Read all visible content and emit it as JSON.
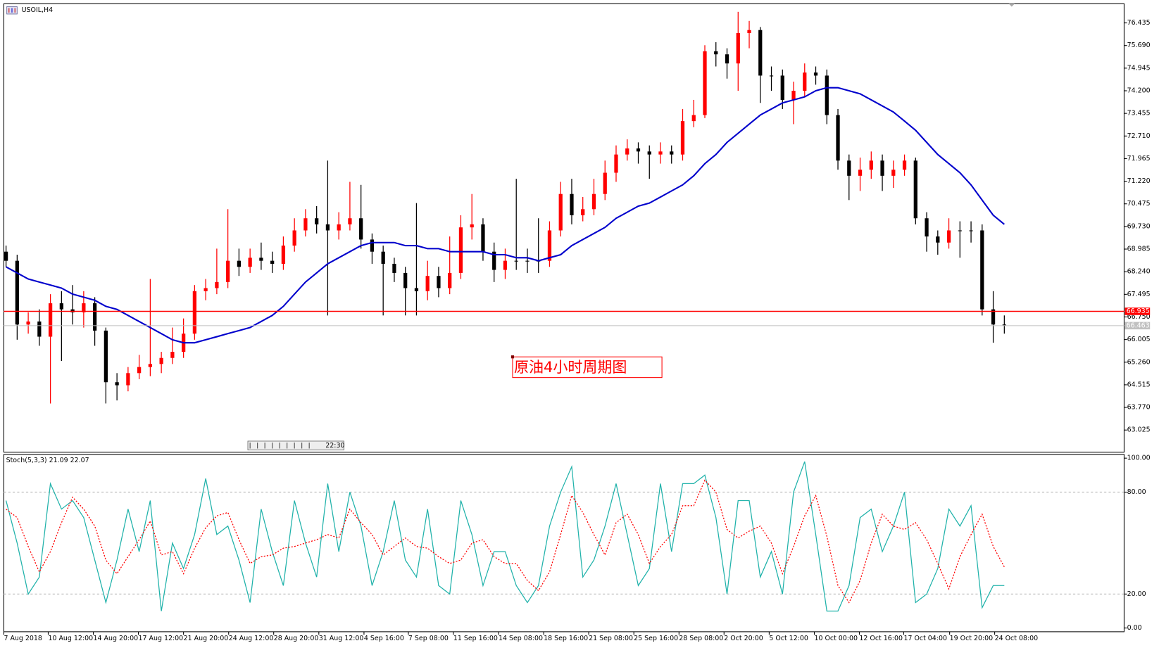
{
  "chart_data": [
    {
      "type": "candlestick",
      "title": "USOIL,H4",
      "open": [
        68.9,
        68.6,
        66.5,
        66.6,
        66.1,
        67.2,
        67.0,
        66.9,
        67.2,
        66.3,
        64.6,
        64.5,
        64.9,
        65.1,
        65.2,
        65.4,
        65.6,
        66.2,
        67.6,
        67.7,
        67.9,
        68.6,
        68.4,
        68.7,
        68.6,
        68.5,
        69.1,
        69.6,
        70.0,
        69.8,
        69.6,
        69.8,
        70.0,
        69.3,
        68.9,
        68.5,
        68.2,
        67.7,
        67.6,
        68.1,
        67.7,
        68.2,
        69.7,
        69.8,
        68.9,
        68.3,
        68.6,
        68.6,
        68.6,
        68.6,
        69.6,
        70.8,
        70.1,
        70.3,
        70.8,
        71.5,
        72.1,
        72.3,
        72.2,
        72.1,
        72.2,
        72.1,
        73.2,
        73.4,
        75.5,
        75.4,
        75.1,
        76.1,
        76.2,
        74.7,
        74.7,
        73.9,
        74.2,
        74.8,
        74.7,
        73.4,
        71.9,
        71.4,
        71.6,
        71.9,
        71.4,
        71.6,
        71.9,
        70.0,
        69.4,
        69.2,
        69.6,
        69.6,
        69.6,
        67.0,
        66.5
      ],
      "high": [
        69.1,
        68.8,
        66.9,
        67.0,
        67.5,
        67.6,
        67.8,
        67.6,
        67.4,
        66.4,
        64.9,
        65.1,
        65.5,
        68.0,
        65.6,
        66.4,
        66.7,
        67.8,
        68.0,
        69.0,
        70.3,
        69.0,
        69.0,
        69.2,
        68.9,
        69.4,
        70.0,
        70.3,
        70.4,
        71.9,
        70.2,
        71.2,
        71.1,
        69.5,
        69.1,
        68.7,
        68.4,
        70.5,
        68.6,
        68.4,
        69.4,
        70.1,
        70.8,
        70.0,
        69.2,
        69.0,
        71.3,
        69.0,
        70.0,
        69.9,
        71.2,
        71.3,
        70.7,
        71.3,
        71.9,
        72.4,
        72.6,
        72.5,
        72.4,
        72.5,
        72.4,
        73.6,
        73.9,
        75.7,
        75.8,
        75.6,
        76.8,
        76.5,
        76.3,
        75.0,
        74.9,
        74.5,
        75.1,
        75.0,
        74.9,
        73.6,
        72.1,
        72.0,
        72.2,
        72.1,
        71.9,
        72.1,
        72.0,
        70.2,
        69.6,
        70.0,
        69.9,
        69.9,
        69.8,
        67.6,
        66.8
      ],
      "low": [
        68.4,
        66.0,
        66.2,
        65.8,
        63.9,
        65.3,
        66.5,
        66.4,
        65.8,
        63.9,
        64.0,
        64.3,
        64.7,
        64.8,
        64.9,
        65.2,
        65.4,
        66.0,
        67.3,
        67.5,
        67.7,
        68.1,
        68.2,
        68.3,
        68.2,
        68.3,
        68.9,
        69.4,
        69.5,
        66.8,
        69.3,
        69.6,
        69.0,
        68.5,
        66.8,
        67.9,
        66.8,
        66.8,
        67.3,
        67.4,
        67.5,
        68.0,
        69.3,
        68.6,
        67.9,
        68.0,
        68.3,
        68.2,
        68.2,
        68.4,
        69.4,
        69.8,
        69.9,
        70.1,
        70.6,
        71.2,
        71.9,
        71.8,
        71.3,
        71.8,
        71.8,
        71.9,
        73.0,
        73.3,
        75.0,
        74.6,
        74.2,
        75.6,
        73.8,
        74.2,
        73.6,
        73.1,
        74.0,
        74.4,
        73.1,
        71.6,
        70.6,
        70.9,
        71.3,
        70.9,
        71.0,
        71.4,
        69.8,
        68.9,
        68.8,
        69.0,
        68.7,
        69.2,
        66.8,
        65.9,
        66.2
      ],
      "close": [
        68.6,
        66.5,
        66.6,
        66.1,
        67.2,
        67.0,
        66.9,
        67.2,
        66.3,
        64.6,
        64.5,
        64.9,
        65.1,
        65.2,
        65.4,
        65.6,
        66.2,
        67.6,
        67.7,
        67.9,
        68.6,
        68.4,
        68.7,
        68.6,
        68.5,
        69.1,
        69.6,
        70.0,
        69.8,
        69.6,
        69.8,
        70.0,
        69.3,
        68.9,
        68.5,
        68.2,
        67.7,
        67.6,
        68.1,
        67.7,
        68.2,
        69.7,
        69.8,
        68.9,
        68.3,
        68.6,
        68.6,
        68.6,
        68.6,
        69.6,
        70.8,
        70.1,
        70.3,
        70.8,
        71.5,
        72.1,
        72.3,
        72.2,
        72.1,
        72.2,
        72.1,
        73.2,
        73.4,
        75.5,
        75.4,
        75.1,
        76.1,
        76.2,
        74.7,
        74.7,
        73.9,
        74.2,
        74.8,
        74.7,
        73.4,
        71.9,
        71.4,
        71.6,
        71.9,
        71.4,
        71.6,
        71.9,
        70.0,
        69.4,
        69.2,
        69.6,
        69.6,
        69.6,
        67.0,
        66.5,
        66.5
      ],
      "up_color": "#ff0000",
      "down_color": "#000000",
      "ma": {
        "color": "#0000cc",
        "values": [
          68.4,
          68.2,
          68.0,
          67.9,
          67.8,
          67.7,
          67.5,
          67.4,
          67.3,
          67.1,
          67.0,
          66.8,
          66.6,
          66.4,
          66.2,
          66.0,
          65.9,
          65.9,
          66.0,
          66.1,
          66.2,
          66.3,
          66.4,
          66.6,
          66.8,
          67.1,
          67.5,
          67.9,
          68.2,
          68.5,
          68.7,
          68.9,
          69.1,
          69.2,
          69.2,
          69.2,
          69.1,
          69.1,
          69.0,
          69.0,
          68.9,
          68.9,
          68.9,
          68.9,
          68.8,
          68.8,
          68.7,
          68.7,
          68.6,
          68.7,
          68.8,
          69.1,
          69.3,
          69.5,
          69.7,
          70.0,
          70.2,
          70.4,
          70.5,
          70.7,
          70.9,
          71.1,
          71.4,
          71.8,
          72.1,
          72.5,
          72.8,
          73.1,
          73.4,
          73.6,
          73.8,
          73.9,
          74.0,
          74.2,
          74.3,
          74.3,
          74.2,
          74.1,
          73.9,
          73.7,
          73.5,
          73.2,
          72.9,
          72.5,
          72.1,
          71.8,
          71.5,
          71.1,
          70.6,
          70.1,
          69.8
        ]
      },
      "price_lines": [
        {
          "value": 66.935,
          "label": "66.935",
          "color": "#ff0000"
        },
        {
          "value": 66.463,
          "label": "66.463",
          "color": "#c0c0c0"
        }
      ],
      "annotation": "原油4小时周期图",
      "scroll_label": "22:30",
      "xlim": [
        -0.2,
        100.8
      ],
      "ylim": [
        62.295,
        77.068
      ],
      "yticks": [
        76.435,
        {
          "value": 75.69,
          "label": "75.690"
        },
        74.945,
        {
          "value": 74.2,
          "label": "74.200"
        },
        73.455,
        {
          "value": 72.71,
          "label": "72.710"
        },
        71.965,
        {
          "value": 71.22,
          "label": "71.220"
        },
        70.475,
        {
          "value": 69.73,
          "label": "69.730"
        },
        68.985,
        {
          "value": 68.24,
          "label": "68.240"
        },
        67.495,
        {
          "value": 66.75,
          "label": "66.750"
        },
        66.005,
        {
          "value": 65.26,
          "label": "65.260"
        },
        64.515,
        {
          "value": 63.77,
          "label": "63.770"
        },
        63.025
      ]
    },
    {
      "type": "line",
      "title": "Stoch(5,3,3) 21.09 22.07",
      "series": [
        {
          "color": "#20b2aa",
          "dash": false,
          "values": [
            75,
            50,
            20,
            30,
            85,
            70,
            75,
            65,
            40,
            15,
            40,
            70,
            45,
            75,
            10,
            50,
            35,
            55,
            88,
            55,
            60,
            40,
            15,
            70,
            45,
            25,
            75,
            50,
            30,
            85,
            45,
            80,
            60,
            25,
            45,
            75,
            40,
            30,
            70,
            25,
            20,
            75,
            55,
            25,
            45,
            45,
            25,
            15,
            25,
            60,
            80,
            95,
            30,
            40,
            60,
            85,
            55,
            25,
            35,
            85,
            45,
            85,
            85,
            90,
            65,
            20,
            75,
            75,
            30,
            45,
            20,
            80,
            98,
            55,
            10,
            10,
            25,
            65,
            70,
            45,
            60,
            80,
            15,
            20,
            35,
            70,
            60,
            72,
            12,
            25,
            25
          ]
        },
        {
          "color": "#ff0000",
          "dash": true,
          "values": [
            70,
            65,
            48,
            33,
            45,
            62,
            77,
            70,
            60,
            40,
            32,
            42,
            52,
            63,
            43,
            45,
            32,
            47,
            59,
            66,
            68,
            52,
            38,
            42,
            43,
            47,
            48,
            50,
            52,
            55,
            53,
            70,
            62,
            55,
            43,
            48,
            53,
            48,
            47,
            42,
            38,
            40,
            50,
            52,
            42,
            38,
            38,
            28,
            22,
            33,
            55,
            78,
            68,
            55,
            43,
            62,
            67,
            55,
            38,
            48,
            55,
            72,
            72,
            87,
            80,
            58,
            53,
            57,
            60,
            50,
            32,
            48,
            66,
            78,
            54,
            25,
            15,
            28,
            50,
            67,
            60,
            58,
            62,
            52,
            38,
            23,
            42,
            55,
            67,
            48,
            36
          ]
        }
      ],
      "levels": [
        80,
        20
      ],
      "xlim": [
        -0.2,
        100.8
      ],
      "xticks": [
        {
          "value": -0.2,
          "label": "7 Aug 2018"
        },
        {
          "value": 3.8,
          "label": "10 Aug 12:00"
        },
        {
          "value": 7.87,
          "label": "14 Aug 20:00"
        },
        {
          "value": 11.93,
          "label": "17 Aug 12:00"
        },
        {
          "value": 16,
          "label": "21 Aug 20:00"
        },
        {
          "value": 20.07,
          "label": "24 Aug 12:00"
        },
        {
          "value": 24.13,
          "label": "28 Aug 20:00"
        },
        {
          "value": 28.2,
          "label": "31 Aug 12:00"
        },
        {
          "value": 32.27,
          "label": "4 Sep 16:00"
        },
        {
          "value": 36.27,
          "label": "7 Sep 08:00"
        },
        {
          "value": 40.33,
          "label": "11 Sep 16:00"
        },
        {
          "value": 44.4,
          "label": "14 Sep 08:00"
        },
        {
          "value": 48.47,
          "label": "18 Sep 16:00"
        },
        {
          "value": 52.53,
          "label": "21 Sep 08:00"
        },
        {
          "value": 56.6,
          "label": "25 Sep 16:00"
        },
        {
          "value": 60.67,
          "label": "28 Sep 08:00"
        },
        {
          "value": 64.73,
          "label": "2 Oct 20:00"
        },
        {
          "value": 68.8,
          "label": "5 Oct 12:00"
        },
        {
          "value": 72.87,
          "label": "10 Oct 00:00"
        },
        {
          "value": 76.93,
          "label": "12 Oct 16:00"
        },
        {
          "value": 80.93,
          "label": "17 Oct 04:00"
        },
        {
          "value": 85.07,
          "label": "19 Oct 20:00"
        },
        {
          "value": 89.13,
          "label": "24 Oct 08:00"
        }
      ],
      "ylim": [
        -2.2,
        102.2
      ],
      "yticks": [
        {
          "value": 100,
          "label": "100.00"
        },
        {
          "value": 80,
          "label": "80.00"
        },
        {
          "value": 20,
          "label": "20.00"
        },
        {
          "value": 0,
          "label": "0.00"
        }
      ]
    }
  ]
}
